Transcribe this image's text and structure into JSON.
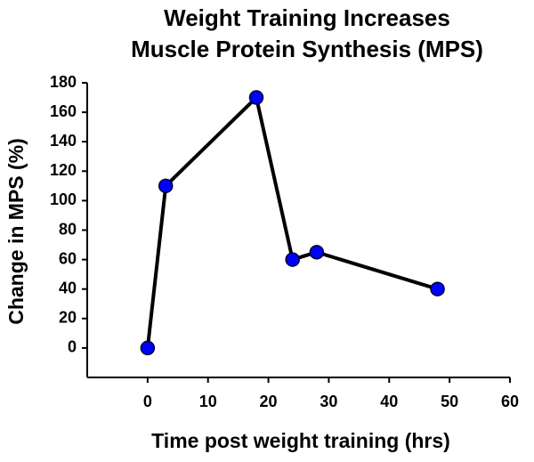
{
  "chart_data": {
    "type": "line",
    "title": [
      "Weight Training Increases",
      "Muscle Protein Synthesis (MPS)"
    ],
    "x_label": "Time post weight training (hrs)",
    "y_label": "Change in MPS (%)",
    "x": [
      0,
      3,
      18,
      24,
      28,
      48
    ],
    "series": [
      {
        "color": "#0000ff",
        "values": [
          0,
          110,
          170,
          60,
          65,
          40
        ]
      }
    ],
    "xlim": [
      -10,
      60
    ],
    "xticks": [
      0,
      10,
      20,
      30,
      40,
      50,
      60
    ],
    "ylim": [
      -20,
      180
    ],
    "yticks": [
      0,
      20,
      40,
      60,
      80,
      100,
      120,
      140,
      160,
      180
    ],
    "grid": false
  }
}
